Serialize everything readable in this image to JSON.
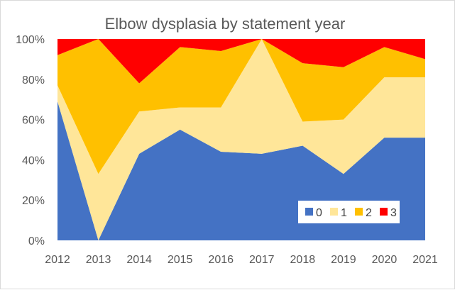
{
  "chart_data": {
    "type": "area",
    "stacked": true,
    "normalized": true,
    "title": "Elbow dysplasia by statement year",
    "xlabel": "",
    "ylabel": "",
    "categories": [
      "2012",
      "2013",
      "2014",
      "2015",
      "2016",
      "2017",
      "2018",
      "2019",
      "2020",
      "2021"
    ],
    "ylim": [
      0,
      100
    ],
    "yticks": [
      "0%",
      "20%",
      "40%",
      "60%",
      "80%",
      "100%"
    ],
    "series": [
      {
        "name": "0",
        "color": "#4472c4",
        "values": [
          69,
          0,
          43,
          55,
          44,
          43,
          47,
          33,
          51,
          51
        ]
      },
      {
        "name": "1",
        "color": "#ffe699",
        "values": [
          8,
          33,
          21,
          11,
          22,
          57,
          12,
          27,
          30,
          30
        ]
      },
      {
        "name": "2",
        "color": "#ffc000",
        "values": [
          15,
          67,
          14,
          30,
          28,
          0,
          29,
          26,
          15,
          9
        ]
      },
      {
        "name": "3",
        "color": "#ff0000",
        "values": [
          8,
          0,
          22,
          4,
          6,
          0,
          12,
          14,
          4,
          10
        ]
      }
    ],
    "legend": "bottom-right",
    "grid": false
  }
}
